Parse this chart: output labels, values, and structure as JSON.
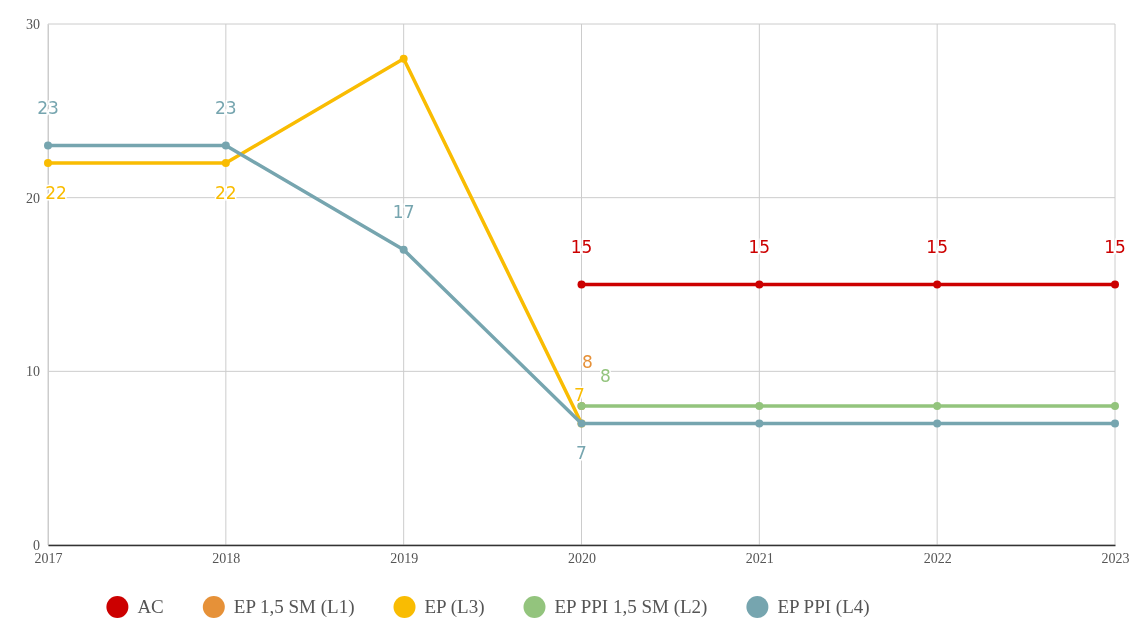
{
  "chart_data": {
    "type": "line",
    "categories": [
      "2017",
      "2018",
      "2019",
      "2020",
      "2021",
      "2022",
      "2023"
    ],
    "ylim": [
      0,
      30
    ],
    "yticks": [
      0,
      10,
      20,
      30
    ],
    "grid": true,
    "legend": "bottom",
    "marker": "circle",
    "line_style": "solid",
    "series": [
      {
        "name": "AC",
        "color": "#cc0000",
        "values": [
          null,
          null,
          null,
          15,
          15,
          15,
          15
        ],
        "value_labels": [
          null,
          null,
          null,
          "15",
          "15",
          "15",
          "15"
        ]
      },
      {
        "name": "EP 1,5 SM (L1)",
        "color": "#e69138",
        "values": [
          null,
          null,
          null,
          8,
          null,
          null,
          null
        ],
        "value_labels": [
          null,
          null,
          null,
          "8",
          null,
          null,
          null
        ]
      },
      {
        "name": "EP (L3)",
        "color": "#f9bc02",
        "values": [
          22,
          22,
          28,
          7,
          null,
          null,
          null
        ],
        "value_labels": [
          "22",
          "22",
          null,
          "7",
          null,
          null,
          null
        ]
      },
      {
        "name": "EP PPI 1,5 SM (L2)",
        "color": "#93c47d",
        "values": [
          null,
          null,
          null,
          8,
          8,
          8,
          8
        ],
        "value_labels": [
          null,
          null,
          null,
          "8",
          null,
          null,
          null
        ]
      },
      {
        "name": "EP PPI (L4)",
        "color": "#76a5af",
        "values": [
          23,
          23,
          17,
          7,
          7,
          7,
          7
        ],
        "value_labels": [
          "23",
          "23",
          "17",
          "7",
          null,
          null,
          null
        ]
      }
    ]
  }
}
